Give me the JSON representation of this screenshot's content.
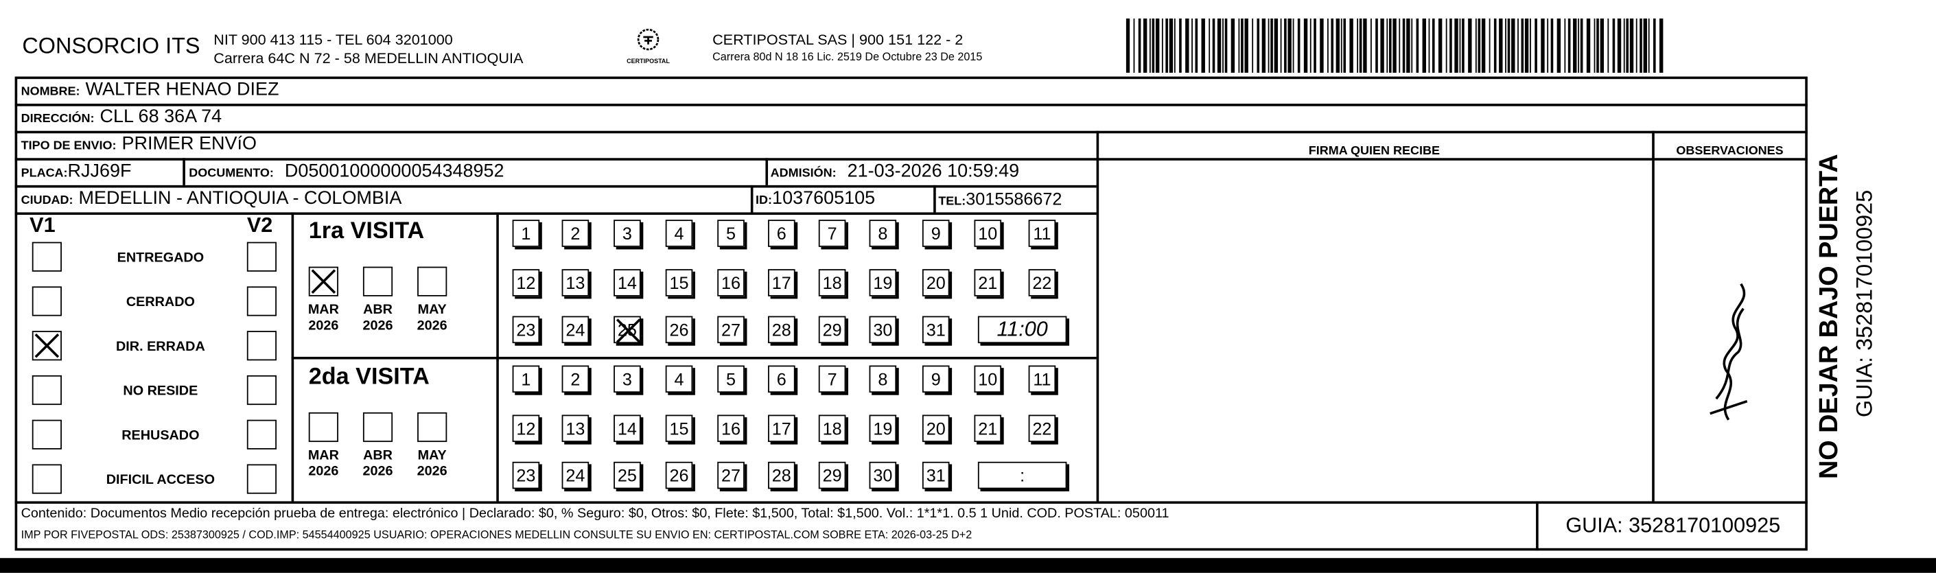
{
  "header": {
    "company": "CONSORCIO ITS",
    "company_line1": "NIT 900 413 115 - TEL 604 3201000",
    "company_line2": "Carrera 64C N 72 - 58 MEDELLIN ANTIOQUIA",
    "logo_text": "CERTIPOSTAL",
    "carrier_line1": "CERTIPOSTAL SAS | 900 151 122 - 2",
    "carrier_line2": "Carrera 80d N 18 16  Lic. 2519 De Octubre 23 De 2015",
    "barcode_icon": "barcode"
  },
  "fields": {
    "nombre_label": "NOMBRE:",
    "nombre": "WALTER HENAO DIEZ",
    "direccion_label": "DIRECCIÓN:",
    "direccion": "CLL 68  36A 74",
    "tipo_label": "TIPO DE ENVIO:",
    "tipo": "PRIMER ENVíO",
    "placa_label": "PLACA:",
    "placa": "RJJ69F",
    "documento_label": "DOCUMENTO:",
    "documento": "D05001000000054348952",
    "admision_label": "ADMISIÓN:",
    "admision": "21-03-2026 10:59:49",
    "ciudad_label": "CIUDAD:",
    "ciudad": "MEDELLIN - ANTIOQUIA - COLOMBIA",
    "id_label": "ID:",
    "id": "1037605105",
    "tel_label": "TEL:",
    "tel": "3015586672"
  },
  "firma_header": "FIRMA QUIEN RECIBE",
  "observaciones_header": "OBSERVACIONES",
  "v1_label": "V1",
  "v2_label": "V2",
  "statuses": [
    {
      "label": "ENTREGADO",
      "v1": false,
      "v2": false
    },
    {
      "label": "CERRADO",
      "v1": false,
      "v2": false
    },
    {
      "label": "DIR. ERRADA",
      "v1": true,
      "v2": false
    },
    {
      "label": "NO RESIDE",
      "v1": false,
      "v2": false
    },
    {
      "label": "REHUSADO",
      "v1": false,
      "v2": false
    },
    {
      "label": "DIFICIL ACCESO",
      "v1": false,
      "v2": false
    }
  ],
  "visits": [
    {
      "title": "1ra VISITA",
      "months": [
        {
          "m": "MAR",
          "y": "2026",
          "checked": true
        },
        {
          "m": "ABR",
          "y": "2026",
          "checked": false
        },
        {
          "m": "MAY",
          "y": "2026",
          "checked": false
        }
      ],
      "checked_day": 25,
      "time": "11:00"
    },
    {
      "title": "2da VISITA",
      "months": [
        {
          "m": "MAR",
          "y": "2026",
          "checked": false
        },
        {
          "m": "ABR",
          "y": "2026",
          "checked": false
        },
        {
          "m": "MAY",
          "y": "2026",
          "checked": false
        }
      ],
      "checked_day": null,
      "time": ":"
    }
  ],
  "footer": {
    "line1": "Contenido: Documentos Medio recepción prueba de entrega: electrónico | Declarado: $0, % Seguro: $0, Otros: $0, Flete: $1,500, Total: $1,500. Vol.: 1*1*1. 0.5  1 Unid. COD. POSTAL: 050011",
    "line2": "IMP POR FIVEPOSTAL ODS: 25387300925 / COD.IMP: 54554400925 USUARIO: OPERACIONES MEDELLIN CONSULTE SU ENVIO EN: CERTIPOSTAL.COM SOBRE ETA: 2026-03-25 D+2",
    "guia": "GUIA: 3528170100925"
  },
  "side": {
    "warning": "NO DEJAR BAJO PUERTA",
    "guia": "GUIA: 3528170100925"
  }
}
